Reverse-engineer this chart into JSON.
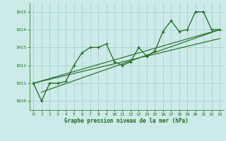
{
  "title": "Graphe pression niveau de la mer (hPa)",
  "bg_color": "#cceae7",
  "grid_color": "#aad4d0",
  "line_color": "#1a6b1a",
  "xlim": [
    -0.5,
    23.5
  ],
  "ylim": [
    1009.5,
    1015.5
  ],
  "yticks": [
    1010,
    1011,
    1012,
    1013,
    1014,
    1015
  ],
  "xticks": [
    0,
    1,
    2,
    3,
    4,
    5,
    6,
    7,
    8,
    9,
    10,
    11,
    12,
    13,
    14,
    15,
    16,
    17,
    18,
    19,
    20,
    21,
    22,
    23
  ],
  "series1": [
    [
      0,
      1011.0
    ],
    [
      1,
      1010.0
    ],
    [
      2,
      1011.0
    ],
    [
      3,
      1011.0
    ],
    [
      4,
      1011.1
    ],
    [
      5,
      1012.0
    ],
    [
      6,
      1012.7
    ],
    [
      7,
      1013.0
    ],
    [
      8,
      1013.0
    ],
    [
      9,
      1013.2
    ],
    [
      10,
      1012.2
    ],
    [
      11,
      1012.0
    ],
    [
      12,
      1012.2
    ],
    [
      13,
      1013.0
    ],
    [
      14,
      1012.5
    ],
    [
      15,
      1012.8
    ],
    [
      16,
      1013.9
    ],
    [
      17,
      1014.5
    ],
    [
      18,
      1013.9
    ],
    [
      19,
      1014.0
    ],
    [
      20,
      1015.0
    ],
    [
      21,
      1015.0
    ],
    [
      22,
      1014.0
    ],
    [
      23,
      1014.0
    ]
  ],
  "line2": [
    [
      0,
      1011.0
    ],
    [
      23,
      1014.0
    ]
  ],
  "line3": [
    [
      1,
      1010.5
    ],
    [
      23,
      1014.0
    ]
  ],
  "line4": [
    [
      0,
      1011.0
    ],
    [
      23,
      1013.5
    ]
  ]
}
